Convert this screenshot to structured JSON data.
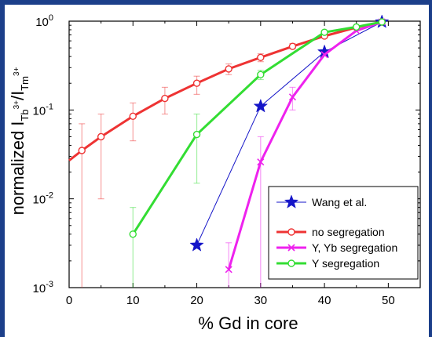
{
  "chart_data": {
    "type": "line",
    "xlabel": "% Gd in core",
    "ylabel": "normalized I",
    "ylabel_sub1": "Tb",
    "ylabel_sup1": "3+",
    "ylabel_sep": "/I",
    "ylabel_sub2": "Tm",
    "ylabel_sup2": "3+",
    "xlim": [
      0,
      55
    ],
    "ylim": [
      0.001,
      1
    ],
    "yscale": "log",
    "xticks": [
      0,
      10,
      20,
      30,
      40,
      50
    ],
    "xtick_labels": [
      "0",
      "10",
      "20",
      "30",
      "40",
      "50"
    ],
    "yticks": [
      0.001,
      0.01,
      0.1,
      1
    ],
    "ytick_labels": [
      {
        "base": "10",
        "exp": "-3"
      },
      {
        "base": "10",
        "exp": "-2"
      },
      {
        "base": "10",
        "exp": "-1"
      },
      {
        "base": "10",
        "exp": "0"
      }
    ],
    "legend_position": "bottom-right",
    "series": [
      {
        "name": "Wang et al.",
        "color": "#1515c8",
        "marker": "star",
        "x": [
          20,
          30,
          40,
          49
        ],
        "y": [
          0.003,
          0.11,
          0.45,
          0.98
        ]
      },
      {
        "name": "no segregation",
        "color": "#ee3333",
        "marker": "circle",
        "x": [
          0,
          2,
          5,
          10,
          15,
          20,
          25,
          30,
          35,
          40,
          45,
          49
        ],
        "y": [
          0.027,
          0.035,
          0.05,
          0.085,
          0.135,
          0.2,
          0.29,
          0.39,
          0.52,
          0.68,
          0.85,
          0.98
        ],
        "err_low": [
          null,
          0.001,
          0.01,
          0.045,
          0.09,
          0.15,
          0.25,
          0.35,
          0.49,
          0.65,
          0.82,
          0.95
        ],
        "err_high": [
          null,
          0.07,
          0.09,
          0.12,
          0.18,
          0.24,
          0.33,
          0.43,
          0.56,
          0.72,
          0.88,
          1.01
        ]
      },
      {
        "name": "Y, Yb segregation",
        "color": "#ee22ee",
        "marker": "x",
        "x": [
          25,
          30,
          35,
          40,
          45,
          49
        ],
        "y": [
          0.0016,
          0.026,
          0.14,
          0.42,
          0.78,
          0.98
        ],
        "err_low": [
          0.001,
          0.001,
          0.1,
          null,
          null,
          null
        ],
        "err_high": [
          0.0032,
          0.05,
          0.18,
          null,
          null,
          null
        ]
      },
      {
        "name": "Y segregation",
        "color": "#33dd33",
        "marker": "circle",
        "x": [
          10,
          20,
          30,
          40,
          45,
          49
        ],
        "y": [
          0.004,
          0.053,
          0.25,
          0.75,
          0.86,
          0.98
        ],
        "err_low": [
          0.001,
          0.015,
          0.22,
          null,
          null,
          null
        ],
        "err_high": [
          0.008,
          0.09,
          0.28,
          null,
          null,
          null
        ]
      }
    ]
  }
}
